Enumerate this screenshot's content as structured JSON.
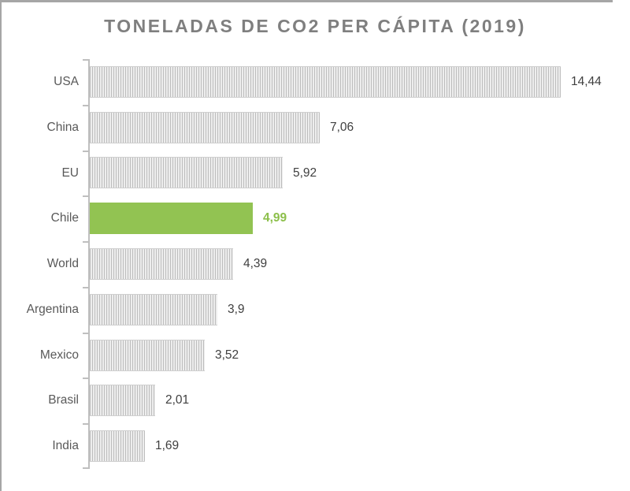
{
  "chart_data": {
    "type": "bar",
    "orientation": "horizontal",
    "title": "TONELADAS DE CO2 PER CÁPITA (2019)",
    "categories": [
      "USA",
      "China",
      "EU",
      "Chile",
      "World",
      "Argentina",
      "Mexico",
      "Brasil",
      "India"
    ],
    "values": [
      14.44,
      7.06,
      5.92,
      4.99,
      4.39,
      3.9,
      3.52,
      2.01,
      1.69
    ],
    "value_labels": [
      "14,44",
      "7,06",
      "5,92",
      "4,99",
      "4,39",
      "3,9",
      "3,52",
      "2,01",
      "1,69"
    ],
    "xlim": [
      0,
      14.44
    ],
    "xlabel": "",
    "ylabel": "",
    "grid": false,
    "legend": false,
    "highlight_index": 3,
    "highlight_category": "Chile",
    "decimal_separator": ","
  },
  "colors": {
    "title_text": "#7f7f7f",
    "category_text": "#595959",
    "value_text": "#3f3f3f",
    "highlight_bar": "#92c352",
    "highlight_value_text": "#8cbf4a",
    "bar_pattern_stripe": "#bdbdbd",
    "bar_pattern_background": "#ededed",
    "axis": "#bfbfbf",
    "frame_border": "#a6a6a6",
    "background": "#ffffff"
  }
}
